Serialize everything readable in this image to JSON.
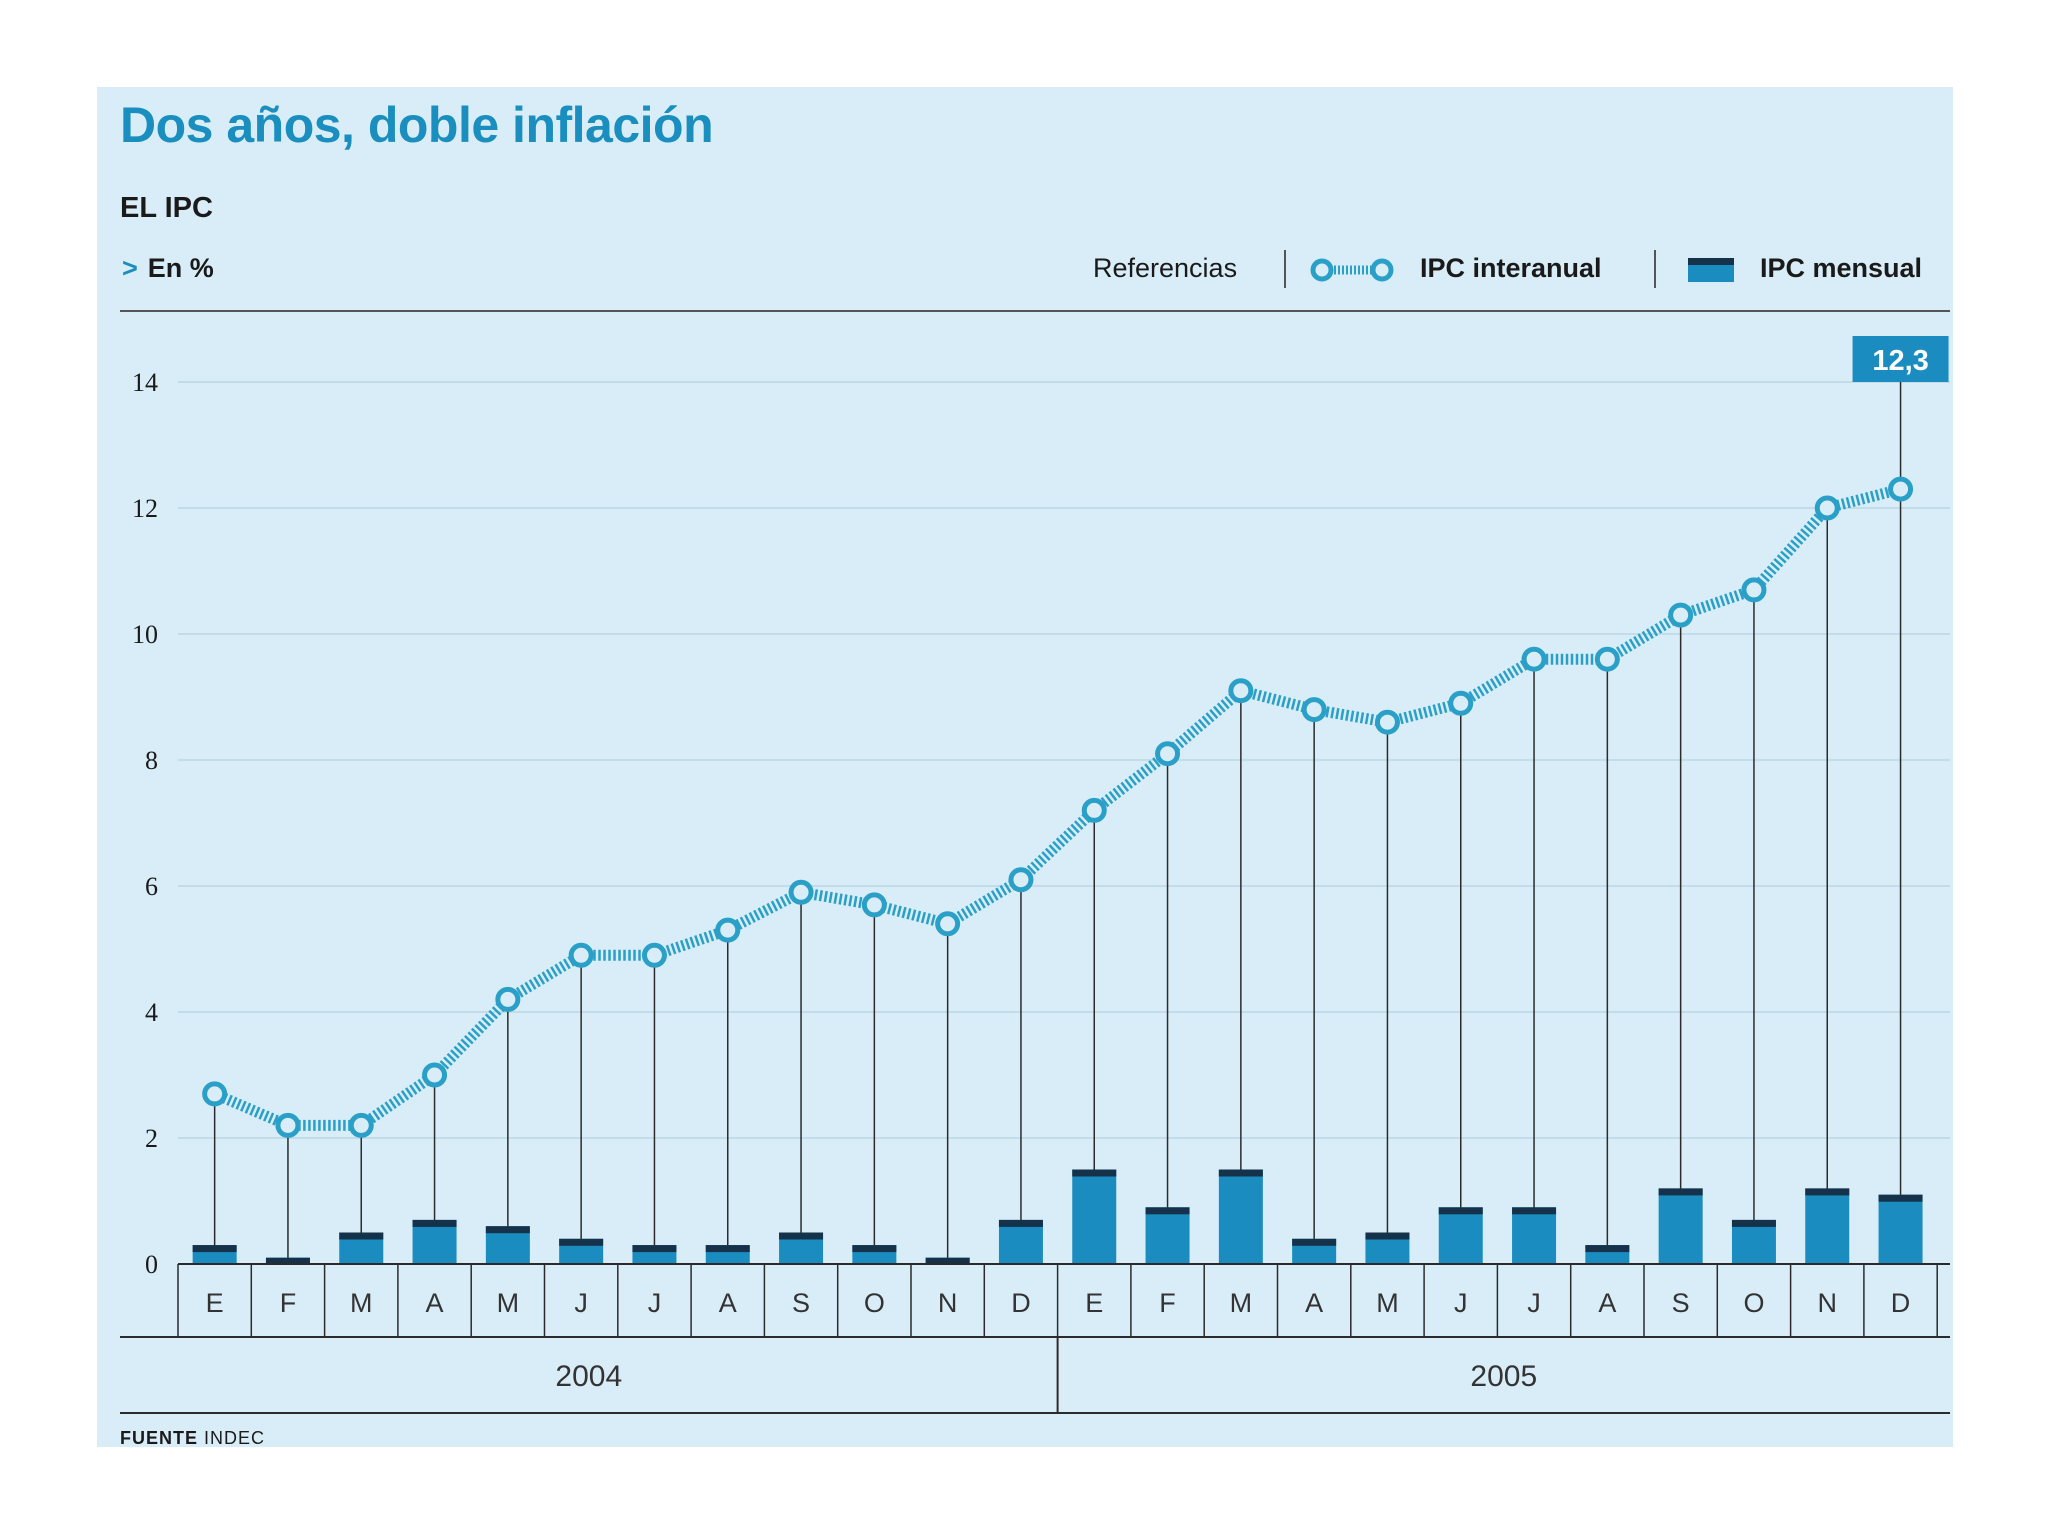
{
  "chart_data": {
    "type": "bar",
    "title": "Dos años, doble inflación",
    "subtitle": "EL IPC",
    "unit": "En %",
    "legend_title": "Referencias",
    "ylim": [
      0,
      14
    ],
    "yticks": [
      0,
      2,
      4,
      6,
      8,
      10,
      12,
      14
    ],
    "categories": [
      "E",
      "F",
      "M",
      "A",
      "M",
      "J",
      "J",
      "A",
      "S",
      "O",
      "N",
      "D",
      "E",
      "F",
      "M",
      "A",
      "M",
      "J",
      "J",
      "A",
      "S",
      "O",
      "N",
      "D"
    ],
    "years": [
      {
        "label": "2004",
        "months": 12
      },
      {
        "label": "2005",
        "months": 12
      }
    ],
    "series": [
      {
        "name": "IPC interanual",
        "type": "line",
        "values": [
          2.7,
          2.2,
          2.2,
          3.0,
          4.2,
          4.9,
          4.9,
          5.3,
          5.9,
          5.7,
          5.4,
          6.1,
          7.2,
          8.1,
          9.1,
          8.8,
          8.6,
          8.9,
          9.6,
          9.6,
          10.3,
          10.7,
          12.0,
          12.3
        ]
      },
      {
        "name": "IPC mensual",
        "type": "bar",
        "values": [
          0.3,
          0.1,
          0.5,
          0.7,
          0.6,
          0.4,
          0.3,
          0.3,
          0.5,
          0.3,
          0.1,
          0.7,
          1.5,
          0.9,
          1.5,
          0.4,
          0.5,
          0.9,
          0.9,
          0.3,
          1.2,
          0.7,
          1.2,
          1.1
        ]
      }
    ],
    "callout": {
      "label": "12,3",
      "index": 23
    },
    "source_label": "FUENTE",
    "source": "INDEC"
  },
  "colors": {
    "background": "#d9edf8",
    "accent": "#1a8fbf",
    "line": "#2aa0c8",
    "bar": "#1b8cc0",
    "bar_top": "#15324a",
    "text": "#1a1a1a"
  }
}
